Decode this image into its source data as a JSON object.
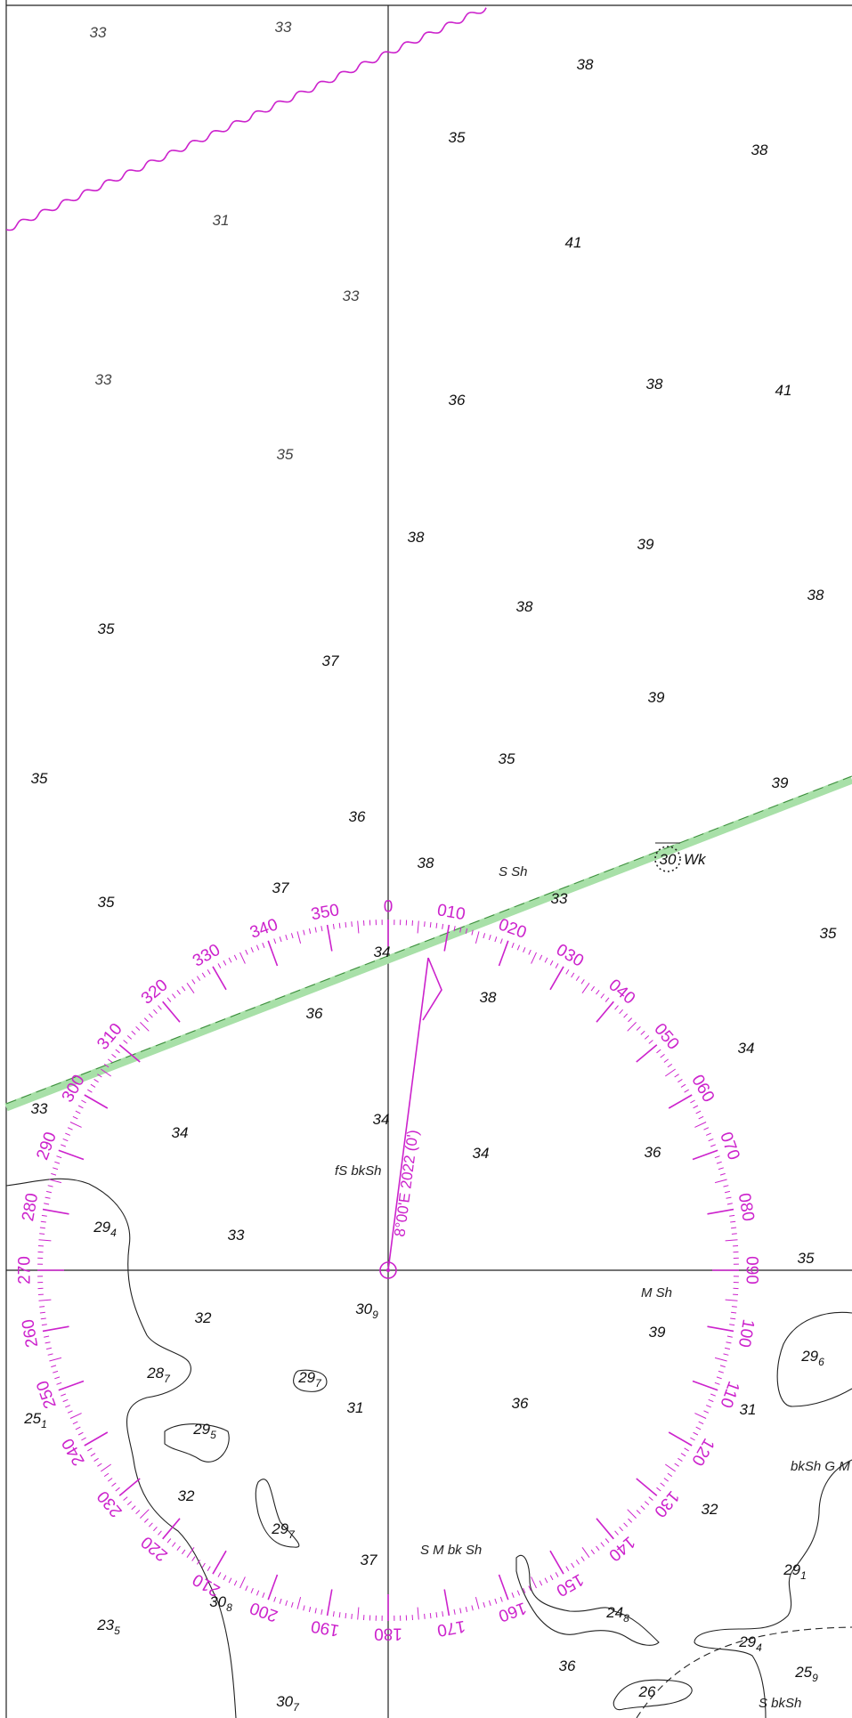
{
  "chart": {
    "colors": {
      "magenta": "#cc22cc",
      "ink": "#111111",
      "track_fill": "#a8e0a8",
      "track_edge": "#3a8a3a",
      "background": "#ffffff"
    },
    "variation_text": "8°00'E 2022 (0')",
    "wreck": {
      "depth": "30",
      "label": "Wk"
    },
    "rose_labels": [
      "0",
      "010",
      "020",
      "030",
      "040",
      "050",
      "060",
      "070",
      "080",
      "090",
      "100",
      "110",
      "120",
      "130",
      "140",
      "150",
      "160",
      "170",
      "180",
      "190",
      "200",
      "210",
      "220",
      "230",
      "240",
      "250",
      "260",
      "270",
      "280",
      "290",
      "300",
      "310",
      "320",
      "330",
      "340",
      "350"
    ],
    "bottom_labels": [
      {
        "id": "ssh",
        "text": "S Sh"
      },
      {
        "id": "fsbksh",
        "text": "fS bkSh"
      },
      {
        "id": "msh",
        "text": "M Sh"
      },
      {
        "id": "smbksh",
        "text": "S M bk Sh"
      },
      {
        "id": "bkshgm",
        "text": "bkSh G M"
      },
      {
        "id": "sbksh",
        "text": "S bkSh"
      }
    ],
    "soundings": [
      {
        "id": "s1",
        "d": "33",
        "s": "",
        "style": "light"
      },
      {
        "id": "s2",
        "d": "33",
        "s": "",
        "style": "light"
      },
      {
        "id": "s3",
        "d": "38",
        "s": "",
        "style": "dark"
      },
      {
        "id": "s4",
        "d": "35",
        "s": "",
        "style": "dark"
      },
      {
        "id": "s5",
        "d": "38",
        "s": "",
        "style": "dark"
      },
      {
        "id": "s6",
        "d": "31",
        "s": "",
        "style": "light"
      },
      {
        "id": "s7",
        "d": "41",
        "s": "",
        "style": "dark"
      },
      {
        "id": "s8",
        "d": "33",
        "s": "",
        "style": "light"
      },
      {
        "id": "s9",
        "d": "33",
        "s": "",
        "style": "light"
      },
      {
        "id": "s10",
        "d": "36",
        "s": "",
        "style": "dark"
      },
      {
        "id": "s11",
        "d": "38",
        "s": "",
        "style": "dark"
      },
      {
        "id": "s12",
        "d": "41",
        "s": "",
        "style": "dark"
      },
      {
        "id": "s13",
        "d": "35",
        "s": "",
        "style": "light"
      },
      {
        "id": "s14",
        "d": "38",
        "s": "",
        "style": "dark"
      },
      {
        "id": "s15",
        "d": "39",
        "s": "",
        "style": "dark"
      },
      {
        "id": "s16",
        "d": "38",
        "s": "",
        "style": "dark"
      },
      {
        "id": "s17",
        "d": "38",
        "s": "",
        "style": "dark"
      },
      {
        "id": "s18",
        "d": "35",
        "s": "",
        "style": "dark"
      },
      {
        "id": "s19",
        "d": "37",
        "s": "",
        "style": "dark"
      },
      {
        "id": "s20",
        "d": "39",
        "s": "",
        "style": "dark"
      },
      {
        "id": "s21",
        "d": "35",
        "s": "",
        "style": "dark"
      },
      {
        "id": "s22",
        "d": "35",
        "s": "",
        "style": "dark"
      },
      {
        "id": "s23",
        "d": "39",
        "s": "",
        "style": "dark"
      },
      {
        "id": "s24",
        "d": "36",
        "s": "",
        "style": "dark"
      },
      {
        "id": "s25",
        "d": "38",
        "s": "",
        "style": "dark"
      },
      {
        "id": "s26",
        "d": "37",
        "s": "",
        "style": "dark"
      },
      {
        "id": "s27",
        "d": "35",
        "s": "",
        "style": "dark"
      },
      {
        "id": "s28",
        "d": "33",
        "s": "",
        "style": "dark"
      },
      {
        "id": "s29",
        "d": "35",
        "s": "",
        "style": "dark"
      },
      {
        "id": "s30",
        "d": "34",
        "s": "",
        "style": "dark"
      },
      {
        "id": "s31",
        "d": "38",
        "s": "",
        "style": "dark"
      },
      {
        "id": "s32",
        "d": "36",
        "s": "",
        "style": "dark"
      },
      {
        "id": "s33",
        "d": "34",
        "s": "",
        "style": "dark"
      },
      {
        "id": "s34",
        "d": "33",
        "s": "",
        "style": "dark"
      },
      {
        "id": "s35",
        "d": "34",
        "s": "",
        "style": "dark"
      },
      {
        "id": "s36",
        "d": "34",
        "s": "",
        "style": "dark"
      },
      {
        "id": "s37",
        "d": "34",
        "s": "",
        "style": "dark"
      },
      {
        "id": "s38",
        "d": "36",
        "s": "",
        "style": "dark"
      },
      {
        "id": "s39",
        "d": "29",
        "s": "4",
        "style": "dark"
      },
      {
        "id": "s40",
        "d": "33",
        "s": "",
        "style": "dark"
      },
      {
        "id": "s41",
        "d": "35",
        "s": "",
        "style": "dark"
      },
      {
        "id": "s42",
        "d": "32",
        "s": "",
        "style": "dark"
      },
      {
        "id": "s43",
        "d": "30",
        "s": "9",
        "style": "dark"
      },
      {
        "id": "s44",
        "d": "39",
        "s": "",
        "style": "dark"
      },
      {
        "id": "s45",
        "d": "29",
        "s": "6",
        "style": "dark"
      },
      {
        "id": "s46",
        "d": "28",
        "s": "7",
        "style": "dark"
      },
      {
        "id": "s47",
        "d": "29",
        "s": "7",
        "style": "dark"
      },
      {
        "id": "s48",
        "d": "31",
        "s": "",
        "style": "dark"
      },
      {
        "id": "s49",
        "d": "36",
        "s": "",
        "style": "dark"
      },
      {
        "id": "s50",
        "d": "31",
        "s": "",
        "style": "dark"
      },
      {
        "id": "s51",
        "d": "25",
        "s": "1",
        "style": "dark"
      },
      {
        "id": "s52",
        "d": "29",
        "s": "5",
        "style": "dark"
      },
      {
        "id": "s53",
        "d": "32",
        "s": "",
        "style": "dark"
      },
      {
        "id": "s54",
        "d": "32",
        "s": "",
        "style": "dark"
      },
      {
        "id": "s55",
        "d": "29",
        "s": "7",
        "style": "dark"
      },
      {
        "id": "s56",
        "d": "37",
        "s": "",
        "style": "dark"
      },
      {
        "id": "s57",
        "d": "29",
        "s": "1",
        "style": "dark"
      },
      {
        "id": "s58",
        "d": "30",
        "s": "8",
        "style": "dark"
      },
      {
        "id": "s59",
        "d": "24",
        "s": "8",
        "style": "dark"
      },
      {
        "id": "s60",
        "d": "23",
        "s": "5",
        "style": "dark"
      },
      {
        "id": "s61",
        "d": "29",
        "s": "4",
        "style": "dark"
      },
      {
        "id": "s62",
        "d": "25",
        "s": "9",
        "style": "dark"
      },
      {
        "id": "s63",
        "d": "36",
        "s": "",
        "style": "dark"
      },
      {
        "id": "s64",
        "d": "26",
        "s": "",
        "style": "dark"
      },
      {
        "id": "s65",
        "d": "30",
        "s": "7",
        "style": "dark"
      }
    ]
  }
}
